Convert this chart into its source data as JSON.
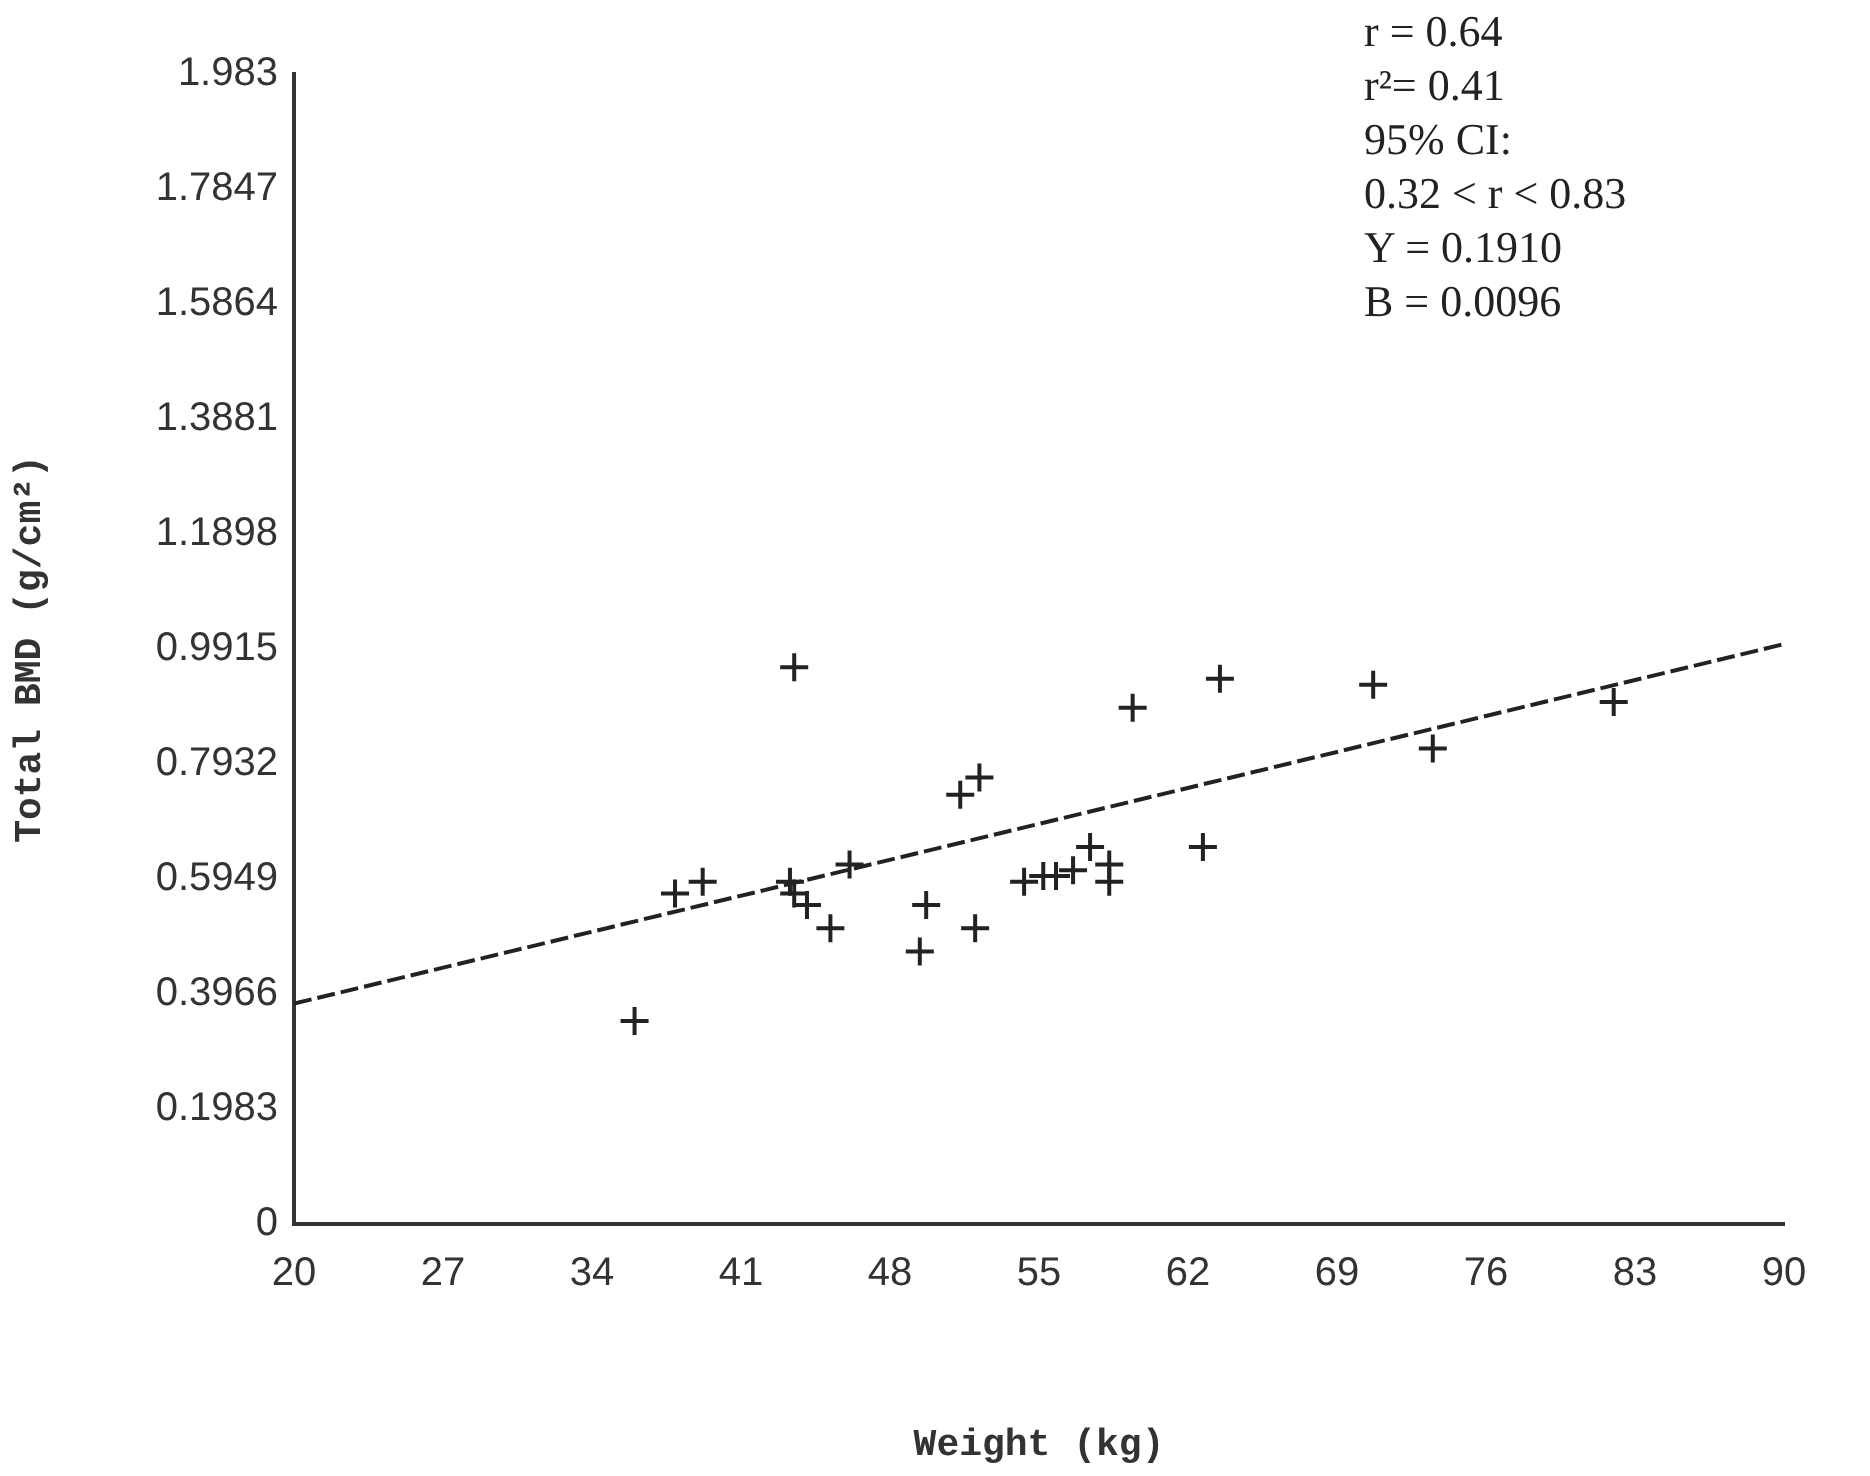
{
  "chart_data": {
    "type": "scatter",
    "xlabel": "Weight (kg)",
    "ylabel": "Total BMD (g/cm²)",
    "annotations": [
      "r = 0.64",
      "r²= 0.41",
      "95% CI:",
      "0.32 < r < 0.83",
      "Y = 0.1910",
      "B = 0.0096"
    ],
    "xlim": [
      20,
      90
    ],
    "xticks": [
      20,
      27,
      34,
      41,
      48,
      55,
      62,
      69,
      76,
      83,
      90
    ],
    "ylim": [
      0,
      1.983
    ],
    "yticks": [
      0,
      0.1983,
      0.3966,
      0.5949,
      0.7932,
      0.9915,
      1.1898,
      1.3881,
      1.5864,
      1.7847,
      1.983
    ],
    "grid": false,
    "legend": false,
    "series": [
      {
        "type": "scatter",
        "color": "#222222",
        "marker": "cross",
        "x": [
          36.0,
          37.9,
          39.2,
          43.3,
          43.5,
          44.1,
          45.2,
          46.1,
          49.4,
          49.7,
          52.0,
          51.3,
          52.2,
          54.3,
          55.2,
          55.8,
          56.6,
          57.4,
          58.3,
          58.3,
          59.4,
          62.7,
          63.5,
          70.7,
          73.5,
          82.0,
          43.5
        ],
        "values": [
          0.35,
          0.57,
          0.59,
          0.59,
          0.57,
          0.55,
          0.51,
          0.62,
          0.47,
          0.55,
          0.51,
          0.74,
          0.77,
          0.59,
          0.6,
          0.6,
          0.61,
          0.65,
          0.62,
          0.59,
          0.89,
          0.65,
          0.94,
          0.93,
          0.82,
          0.9,
          0.96
        ]
      },
      {
        "type": "line",
        "color": "#222222",
        "marker": "none",
        "line_style": "dashed",
        "x": [
          20,
          90
        ],
        "values": [
          0.38,
          1.0
        ]
      }
    ]
  }
}
